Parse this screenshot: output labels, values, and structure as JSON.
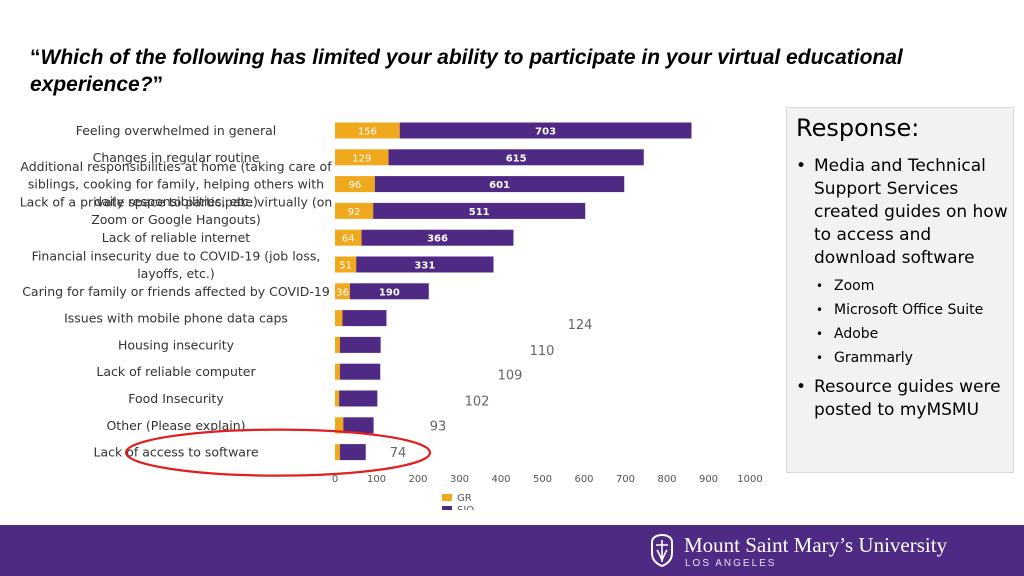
{
  "title": {
    "open_quote": "“",
    "text": "Which of the following has limited your ability to participate in your virtual educational experience?",
    "close_quote": "”"
  },
  "chart_data": {
    "type": "bar",
    "orientation": "horizontal",
    "stacked": true,
    "categories": [
      "Feeling overwhelmed in general",
      "Changes in regular routine",
      "Additional responsibilities at home (taking care of siblings, cooking for family, helping others with daily responsibilities, etc.)",
      "Lack of a private space to participate virtually (on Zoom or Google Hangouts)",
      "Lack of reliable internet",
      "Financial insecurity due to COVID-19 (job loss, layoffs, etc.)",
      "Caring for family or friends affected by COVID-19",
      "Issues with mobile phone data caps",
      "Housing insecurity",
      "Lack of reliable computer",
      "Food Insecurity",
      "Other (Please explain)",
      "Lack of access to software"
    ],
    "category_lines": [
      [
        "Feeling overwhelmed in general"
      ],
      [
        "Changes in regular routine"
      ],
      [
        "Additional responsibilities at home (taking care of",
        "siblings, cooking for family, helping others with",
        "daily responsibilities, etc.)"
      ],
      [
        "Lack of a private space to participate virtually (on",
        "Zoom or Google Hangouts)"
      ],
      [
        "Lack of reliable internet"
      ],
      [
        "Financial insecurity due to COVID-19 (job loss,",
        "layoffs, etc.)"
      ],
      [
        "Caring for family or friends affected by COVID-19"
      ],
      [
        "Issues with mobile phone data caps"
      ],
      [
        "Housing insecurity"
      ],
      [
        "Lack of reliable computer"
      ],
      [
        "Food Insecurity"
      ],
      [
        "Other (Please explain)"
      ],
      [
        "Lack of access to software"
      ]
    ],
    "series": [
      {
        "name": "GR",
        "color": "#f0a81c",
        "values": [
          156,
          129,
          96,
          92,
          64,
          51,
          36,
          18,
          12,
          12,
          10,
          20,
          12
        ]
      },
      {
        "name": "SIO",
        "color": "#4e2a84",
        "values": [
          703,
          615,
          601,
          511,
          366,
          331,
          190,
          106,
          98,
          97,
          92,
          73,
          62
        ]
      }
    ],
    "bar_labels_gr": [
      "156",
      "129",
      "96",
      "92",
      "64",
      "51",
      "36",
      "",
      "",
      "",
      "",
      "",
      ""
    ],
    "bar_labels_sio": [
      "703",
      "615",
      "601",
      "511",
      "366",
      "331",
      "190",
      "",
      "",
      "",
      "",
      "",
      ""
    ],
    "outside_labels": [
      "",
      "",
      "",
      "",
      "",
      "",
      "",
      "124",
      "110",
      "109",
      "102",
      "93",
      "74"
    ],
    "xlim": [
      0,
      1000
    ],
    "xticks": [
      "0",
      "100",
      "200",
      "300",
      "400",
      "500",
      "600",
      "700",
      "800",
      "900",
      "1000"
    ],
    "legend": {
      "placement": "bottom",
      "items": [
        "GR",
        "SIO"
      ]
    },
    "highlight": {
      "category": "Lack of access to software",
      "shape": "red ellipse",
      "color": "#e02020"
    },
    "grid": false
  },
  "response": {
    "heading": "Response:",
    "item1": "Media and Technical Support Services created guides on how to access and download software",
    "sub_items": [
      "Zoom",
      "Microsoft Office Suite",
      "Adobe",
      "Grammarly"
    ],
    "item2": "Resource guides were posted to myMSMU"
  },
  "footer": {
    "logo_name": "Mount Saint Mary’s University",
    "logo_sub": "LOS ANGELES",
    "background": "#4e2a84"
  }
}
